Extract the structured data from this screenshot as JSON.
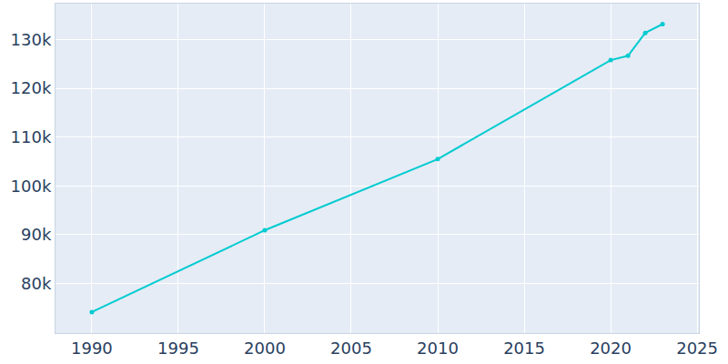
{
  "chart_data": {
    "type": "line",
    "x": [
      1990,
      2000,
      2010,
      2020,
      2021,
      2022,
      2023
    ],
    "values": [
      74100,
      90900,
      105500,
      125800,
      126700,
      131400,
      133200
    ],
    "color": "#00cbd0",
    "marker": "circle",
    "xlim": [
      1987.9,
      2025.1
    ],
    "xticks": [
      1990,
      1995,
      2000,
      2005,
      2010,
      2015,
      2020,
      2025
    ],
    "ylim": [
      69800,
      137400
    ],
    "yticks": [
      {
        "value": 80000,
        "label": "80k"
      },
      {
        "value": 90000,
        "label": "90k"
      },
      {
        "value": 100000,
        "label": "100k"
      },
      {
        "value": 110000,
        "label": "110k"
      },
      {
        "value": 120000,
        "label": "120k"
      },
      {
        "value": 130000,
        "label": "130k"
      }
    ],
    "grid": true
  }
}
